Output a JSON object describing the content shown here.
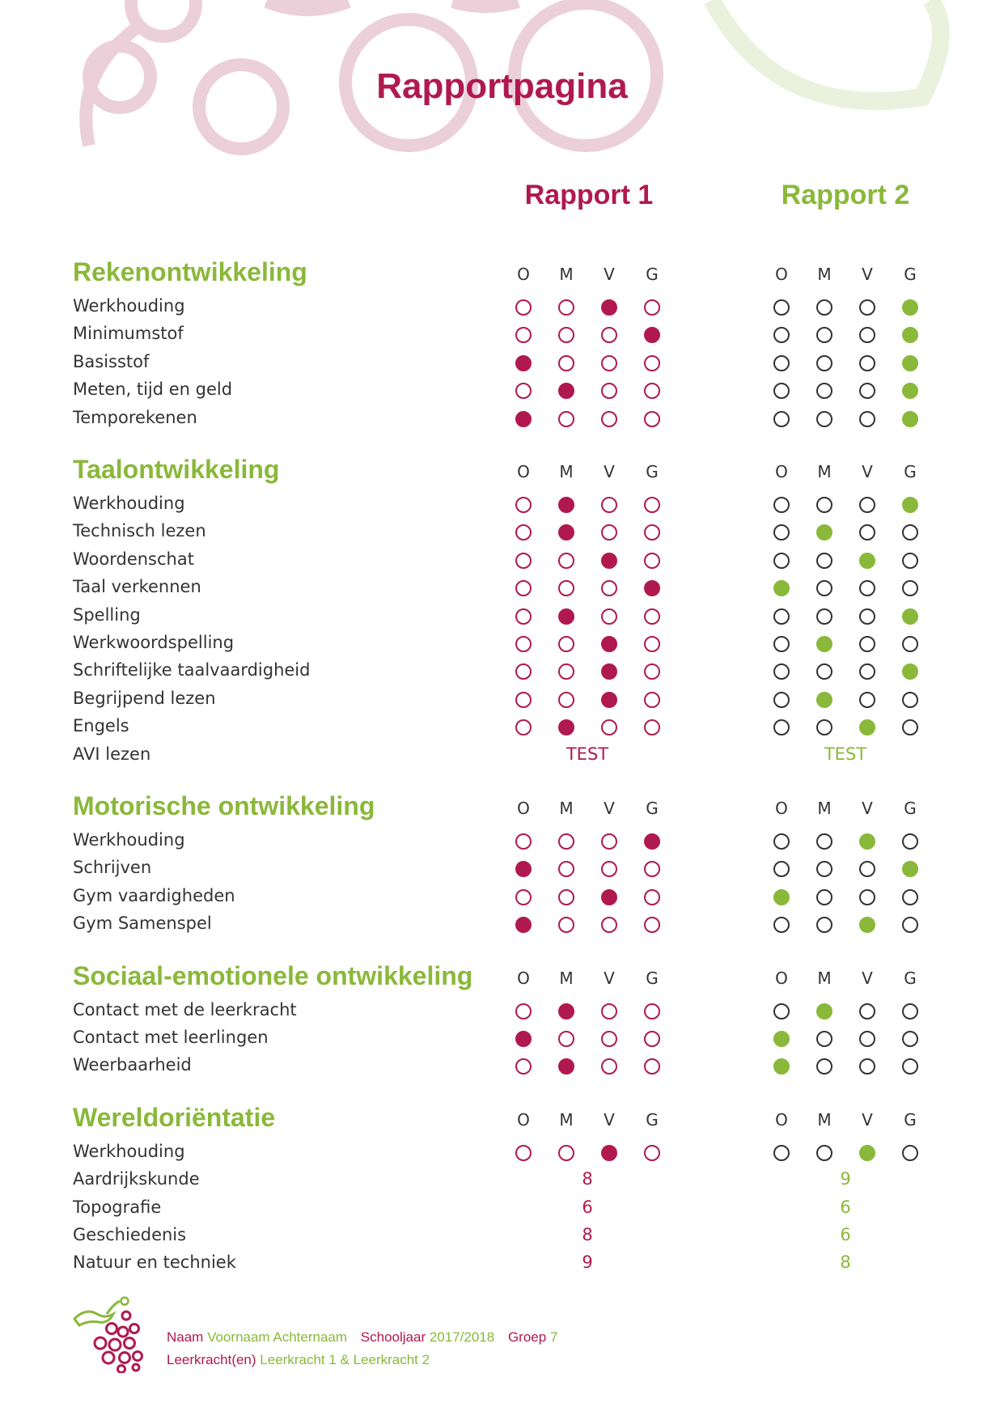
{
  "page": {
    "title": "Rapportpagina",
    "report_headers": [
      "Rapport 1",
      "Rapport 2"
    ],
    "rating_letters": [
      "O",
      "M",
      "V",
      "G"
    ]
  },
  "colors": {
    "rapport1": "#b0194f",
    "rapport2": "#8ab83a",
    "section_title": "#8ab83a",
    "text": "#333333"
  },
  "sections": [
    {
      "title": "Rekenontwikkeling",
      "rows": [
        {
          "label": "Werkhouding",
          "r1": 2,
          "r2": 3
        },
        {
          "label": "Minimumstof",
          "r1": 3,
          "r2": 3
        },
        {
          "label": "Basisstof",
          "r1": 0,
          "r2": 3
        },
        {
          "label": "Meten, tijd en geld",
          "r1": 1,
          "r2": 3
        },
        {
          "label": "Temporekenen",
          "r1": 0,
          "r2": 3
        }
      ]
    },
    {
      "title": "Taalontwikkeling",
      "rows": [
        {
          "label": "Werkhouding",
          "r1": 1,
          "r2": 3
        },
        {
          "label": "Technisch lezen",
          "r1": 1,
          "r2": 1
        },
        {
          "label": "Woordenschat",
          "r1": 2,
          "r2": 2
        },
        {
          "label": "Taal verkennen",
          "r1": 3,
          "r2": 0
        },
        {
          "label": "Spelling",
          "r1": 1,
          "r2": 3
        },
        {
          "label": "Werkwoordspelling",
          "r1": 2,
          "r2": 1
        },
        {
          "label": "Schriftelijke taalvaardigheid",
          "r1": 2,
          "r2": 3
        },
        {
          "label": "Begrijpend lezen",
          "r1": 2,
          "r2": 1
        },
        {
          "label": "Engels",
          "r1": 1,
          "r2": 2
        },
        {
          "label": "AVI lezen",
          "r1_text": "TEST",
          "r2_text": "TEST"
        }
      ]
    },
    {
      "title": "Motorische ontwikkeling",
      "rows": [
        {
          "label": "Werkhouding",
          "r1": 3,
          "r2": 2
        },
        {
          "label": "Schrijven",
          "r1": 0,
          "r2": 3
        },
        {
          "label": "Gym vaardigheden",
          "r1": 2,
          "r2": 0
        },
        {
          "label": "Gym Samenspel",
          "r1": 0,
          "r2": 2
        }
      ]
    },
    {
      "title": "Sociaal-emotionele ontwikkeling",
      "rows": [
        {
          "label": "Contact met de leerkracht",
          "r1": 1,
          "r2": 1
        },
        {
          "label": "Contact met leerlingen",
          "r1": 0,
          "r2": 0
        },
        {
          "label": "Weerbaarheid",
          "r1": 1,
          "r2": 0
        }
      ]
    },
    {
      "title": "Wereldoriëntatie",
      "rows": [
        {
          "label": "Werkhouding",
          "r1": 2,
          "r2": 2
        },
        {
          "label": "Aardrijkskunde",
          "r1_text": "8",
          "r2_text": "9"
        },
        {
          "label": "Topografie",
          "r1_text": "6",
          "r2_text": "6"
        },
        {
          "label": "Geschiedenis",
          "r1_text": "8",
          "r2_text": "6"
        },
        {
          "label": "Natuur en techniek",
          "r1_text": "9",
          "r2_text": "8"
        }
      ]
    }
  ],
  "footer": {
    "naam_label": "Naam",
    "naam_value": "Voornaam Achternaam",
    "schooljaar_label": "Schooljaar",
    "schooljaar_value": "2017/2018",
    "groep_label": "Groep",
    "groep_value": "7",
    "leerkracht_label": "Leerkracht(en)",
    "leerkracht_value": "Leerkracht 1 & Leerkracht 2"
  }
}
